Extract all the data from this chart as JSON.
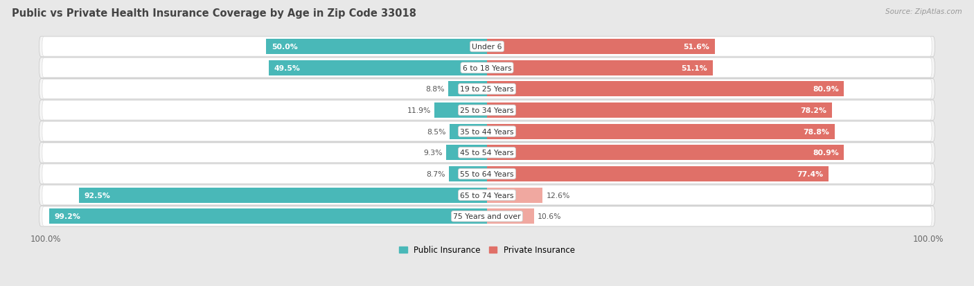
{
  "title": "Public vs Private Health Insurance Coverage by Age in Zip Code 33018",
  "source": "Source: ZipAtlas.com",
  "categories": [
    "Under 6",
    "6 to 18 Years",
    "19 to 25 Years",
    "25 to 34 Years",
    "35 to 44 Years",
    "45 to 54 Years",
    "55 to 64 Years",
    "65 to 74 Years",
    "75 Years and over"
  ],
  "public_values": [
    50.0,
    49.5,
    8.8,
    11.9,
    8.5,
    9.3,
    8.7,
    92.5,
    99.2
  ],
  "private_values": [
    51.6,
    51.1,
    80.9,
    78.2,
    78.8,
    80.9,
    77.4,
    12.6,
    10.6
  ],
  "public_color": "#49b8b8",
  "private_color_high": "#e07068",
  "private_color_low": "#f0a8a0",
  "public_label": "Public Insurance",
  "private_label": "Private Insurance",
  "bg_color": "#e8e8e8",
  "row_bg_color": "#f4f4f4",
  "row_card_color": "#ffffff",
  "title_color": "#444444",
  "source_color": "#999999",
  "axis_label_color": "#666666",
  "max_value": 100.0,
  "private_threshold": 50
}
